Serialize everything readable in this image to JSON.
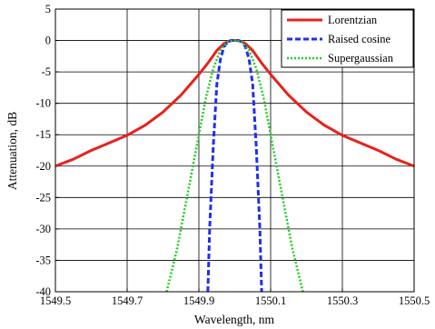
{
  "chart_data": {
    "type": "line",
    "title": "",
    "xlabel": "Wavelength, nm",
    "ylabel": "Attenuation, dB",
    "xlim": [
      1549.5,
      1550.5
    ],
    "ylim": [
      -40,
      5
    ],
    "x_ticks": [
      1549.5,
      1549.7,
      1549.9,
      1550.1,
      1550.3,
      1550.5
    ],
    "x_tick_labels": [
      "1549.5",
      "1549.7",
      "1549.9",
      "1550.1",
      "1550.3",
      "1550.5"
    ],
    "y_ticks": [
      5,
      0,
      -5,
      -10,
      -15,
      -20,
      -25,
      -30,
      -35,
      -40
    ],
    "y_tick_labels": [
      "5",
      "0",
      "-5",
      "-10",
      "-15",
      "-20",
      "-25",
      "-30",
      "-35",
      "-40"
    ],
    "grid": true,
    "legend_position": "top-right",
    "series": [
      {
        "name": "Lorentzian",
        "color": "#e8211b",
        "line_style": "solid",
        "x": [
          1549.5,
          1549.55,
          1549.6,
          1549.65,
          1549.7,
          1549.75,
          1549.8,
          1549.85,
          1549.9,
          1549.925,
          1549.95,
          1549.97,
          1549.98,
          1549.99,
          1550.0,
          1550.01,
          1550.02,
          1550.03,
          1550.05,
          1550.075,
          1550.1,
          1550.15,
          1550.2,
          1550.25,
          1550.3,
          1550.35,
          1550.4,
          1550.45,
          1550.5
        ],
        "y": [
          -20.0,
          -18.9,
          -17.5,
          -16.3,
          -15.1,
          -13.5,
          -11.4,
          -8.7,
          -5.4,
          -3.6,
          -1.6,
          -0.5,
          -0.2,
          0.0,
          0.0,
          0.0,
          -0.2,
          -0.5,
          -1.6,
          -3.6,
          -5.4,
          -8.7,
          -11.4,
          -13.5,
          -15.1,
          -16.3,
          -17.5,
          -18.9,
          -20.0
        ]
      },
      {
        "name": "Raised cosine",
        "color": "#1f2ff0",
        "line_style": "dashed",
        "x": [
          1549.925,
          1549.93,
          1549.94,
          1549.95,
          1549.96,
          1549.97,
          1549.98,
          1549.99,
          1550.0,
          1550.01,
          1550.02,
          1550.03,
          1550.04,
          1550.05,
          1550.06,
          1550.07,
          1550.075
        ],
        "y": [
          -40,
          -30,
          -17,
          -7,
          -3,
          -1,
          -0.2,
          0,
          0,
          0,
          -0.2,
          -1,
          -3,
          -7,
          -17,
          -30,
          -40
        ]
      },
      {
        "name": "Supergaussian",
        "color": "#22cc22",
        "line_style": "dotted",
        "x": [
          1549.81,
          1549.84,
          1549.86,
          1549.88,
          1549.9,
          1549.92,
          1549.94,
          1549.96,
          1549.98,
          1550.0,
          1550.02,
          1550.04,
          1550.06,
          1550.08,
          1550.1,
          1550.12,
          1550.14,
          1550.16,
          1550.19
        ],
        "y": [
          -40,
          -33,
          -27,
          -21,
          -15,
          -9,
          -4.5,
          -1.5,
          -0.2,
          0,
          -0.2,
          -1.5,
          -4.5,
          -9,
          -15,
          -21,
          -27,
          -33,
          -40
        ]
      }
    ]
  }
}
